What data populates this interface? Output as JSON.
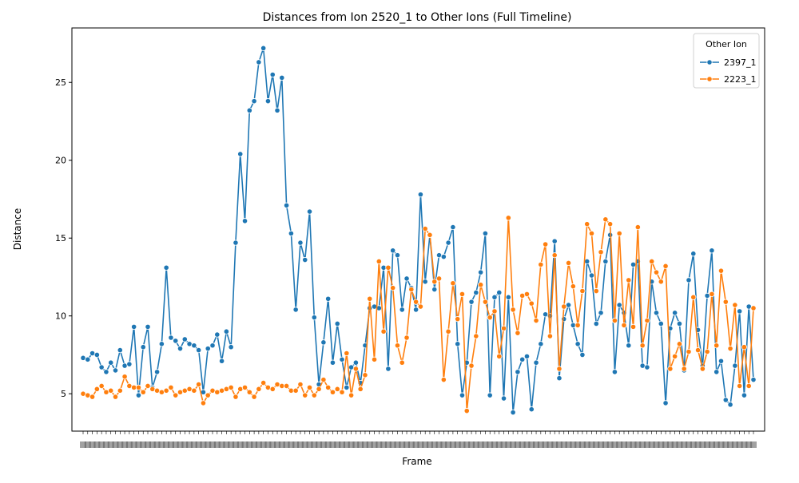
{
  "chart_data": {
    "type": "line",
    "title": "Distances from Ion 2520_1 to Other Ions (Full Timeline)",
    "xlabel": "Frame",
    "ylabel": "Distance",
    "ylim": [
      2.6,
      28.5
    ],
    "yticks": [
      5,
      10,
      15,
      20,
      25
    ],
    "grid": false,
    "legend": {
      "title": "Other Ion",
      "placement": "top-right"
    },
    "colors": {
      "2397_1": "#1f77b4",
      "2223_1": "#ff7f0e"
    },
    "x_tick_note": "crowded x tick labels overlap and are illegible",
    "series": [
      {
        "name": "2397_1",
        "values": [
          7.3,
          7.2,
          7.6,
          7.5,
          6.7,
          6.4,
          7.0,
          6.5,
          7.8,
          6.8,
          6.9,
          9.3,
          4.9,
          8.0,
          9.3,
          5.4,
          6.4,
          8.2,
          13.1,
          8.6,
          8.4,
          7.9,
          8.5,
          8.2,
          8.1,
          7.8,
          5.1,
          7.9,
          8.1,
          8.8,
          7.1,
          9.0,
          8.0,
          14.7,
          20.4,
          16.1,
          23.2,
          23.8,
          26.3,
          27.2,
          23.8,
          25.5,
          23.2,
          25.3,
          17.1,
          15.3,
          10.4,
          14.7,
          13.6,
          16.7,
          9.9,
          5.6,
          8.3,
          11.1,
          7.0,
          9.5,
          7.2,
          5.4,
          6.7,
          7.0,
          5.7,
          8.1,
          10.5,
          10.6,
          10.5,
          13.1,
          6.6,
          14.2,
          13.9,
          10.4,
          12.4,
          11.8,
          10.4,
          17.8,
          12.2,
          15.2,
          11.7,
          13.9,
          13.8,
          14.7,
          15.7,
          8.2,
          4.9,
          7.0,
          10.9,
          11.5,
          12.8,
          15.3,
          4.9,
          11.2,
          11.5,
          4.7,
          11.2,
          3.8,
          6.4,
          7.2,
          7.4,
          4.0,
          7.0,
          8.2,
          10.1,
          10.0,
          14.8,
          6.0,
          9.8,
          10.7,
          9.4,
          8.2,
          7.5,
          13.5,
          12.6,
          9.5,
          10.2,
          13.5,
          15.2,
          6.4,
          10.7,
          10.2,
          8.1,
          13.3,
          13.5,
          6.8,
          6.7,
          12.2,
          10.2,
          9.5,
          4.4,
          9.2,
          10.2,
          9.5,
          6.5,
          12.3,
          14.0,
          9.1,
          6.8,
          11.3,
          14.2,
          6.4,
          7.1,
          4.6,
          4.3,
          6.8,
          10.3,
          4.9,
          10.6,
          5.9
        ]
      },
      {
        "name": "2223_1",
        "values": [
          5.0,
          4.9,
          4.8,
          5.3,
          5.5,
          5.1,
          5.2,
          4.8,
          5.2,
          6.1,
          5.5,
          5.4,
          5.4,
          5.1,
          5.5,
          5.3,
          5.2,
          5.1,
          5.2,
          5.4,
          4.9,
          5.1,
          5.2,
          5.3,
          5.2,
          5.6,
          4.4,
          4.9,
          5.2,
          5.1,
          5.2,
          5.3,
          5.4,
          4.8,
          5.3,
          5.4,
          5.1,
          4.8,
          5.3,
          5.7,
          5.4,
          5.3,
          5.6,
          5.5,
          5.5,
          5.2,
          5.2,
          5.6,
          4.9,
          5.4,
          4.9,
          5.3,
          5.9,
          5.4,
          5.1,
          5.3,
          5.1,
          7.6,
          4.9,
          6.6,
          5.3,
          6.2,
          11.1,
          7.2,
          13.5,
          9.0,
          13.1,
          11.8,
          8.1,
          7.0,
          8.6,
          11.7,
          10.9,
          10.6,
          15.6,
          15.2,
          12.2,
          12.4,
          5.9,
          9.0,
          12.1,
          9.8,
          11.4,
          3.9,
          6.8,
          8.7,
          12.0,
          10.9,
          9.9,
          10.3,
          7.4,
          9.2,
          16.3,
          10.4,
          8.9,
          11.3,
          11.4,
          10.8,
          9.7,
          13.3,
          14.6,
          8.7,
          13.9,
          6.6,
          10.6,
          13.4,
          11.9,
          9.4,
          11.6,
          15.9,
          15.3,
          11.6,
          14.1,
          16.2,
          15.9,
          9.7,
          15.3,
          9.4,
          12.3,
          9.3,
          15.7,
          8.1,
          9.7,
          13.5,
          12.8,
          12.2,
          13.2,
          6.6,
          7.4,
          8.2,
          6.6,
          7.7,
          11.2,
          7.8,
          6.6,
          7.7,
          11.4,
          8.1,
          12.9,
          10.9,
          7.9,
          10.7,
          5.5,
          8.0,
          5.5,
          10.5
        ]
      }
    ]
  }
}
